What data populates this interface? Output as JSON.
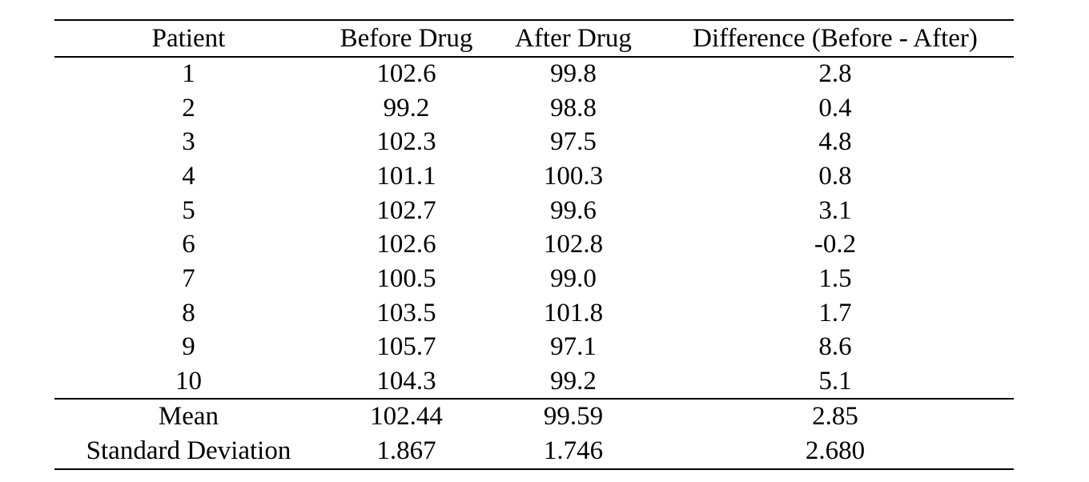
{
  "page": {
    "background": "#ffffff",
    "text_color": "#000000",
    "rule_color": "#000000"
  },
  "table": {
    "headers": {
      "patient": "Patient",
      "before": "Before Drug",
      "after": "After Drug",
      "difference": "Difference (Before - After)"
    },
    "rows": [
      {
        "patient": "1",
        "before": "102.6",
        "after": "99.8",
        "difference": "2.8"
      },
      {
        "patient": "2",
        "before": "99.2",
        "after": "98.8",
        "difference": "0.4"
      },
      {
        "patient": "3",
        "before": "102.3",
        "after": "97.5",
        "difference": "4.8"
      },
      {
        "patient": "4",
        "before": "101.1",
        "after": "100.3",
        "difference": "0.8"
      },
      {
        "patient": "5",
        "before": "102.7",
        "after": "99.6",
        "difference": "3.1"
      },
      {
        "patient": "6",
        "before": "102.6",
        "after": "102.8",
        "difference": "-0.2"
      },
      {
        "patient": "7",
        "before": "100.5",
        "after": "99.0",
        "difference": "1.5"
      },
      {
        "patient": "8",
        "before": "103.5",
        "after": "101.8",
        "difference": "1.7"
      },
      {
        "patient": "9",
        "before": "105.7",
        "after": "97.1",
        "difference": "8.6"
      },
      {
        "patient": "10",
        "before": "104.3",
        "after": "99.2",
        "difference": "5.1"
      }
    ],
    "summary": [
      {
        "label": "Mean",
        "before": "102.44",
        "after": "99.59",
        "difference": "2.85"
      },
      {
        "label": "Standard Deviation",
        "before": "1.867",
        "after": "1.746",
        "difference": "2.680"
      }
    ]
  }
}
